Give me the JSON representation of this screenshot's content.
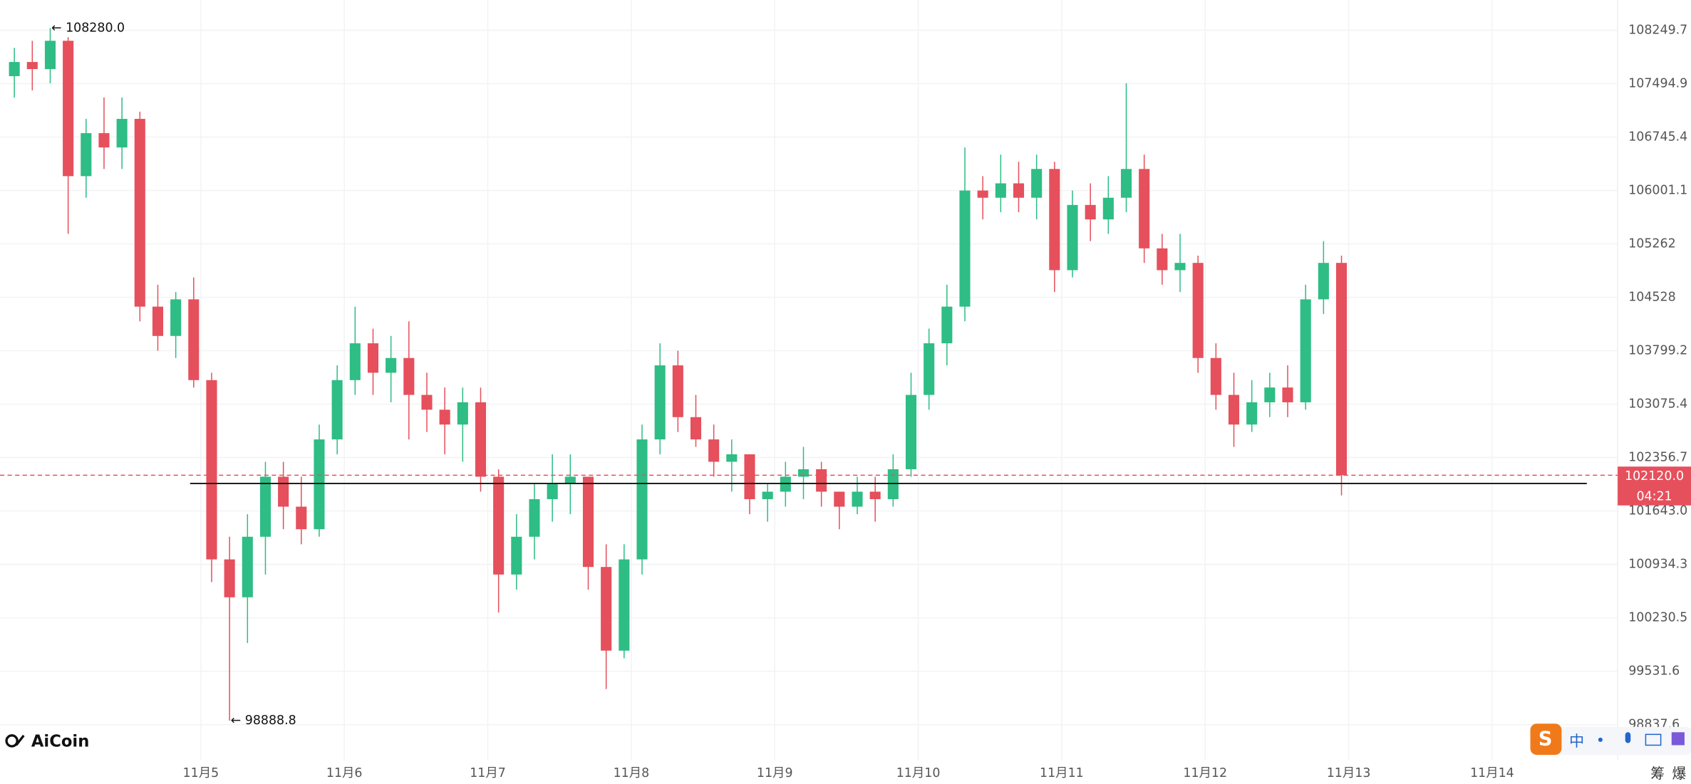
{
  "chart_data": {
    "type": "candlestick",
    "brand": "AiCoin",
    "log_scale": true,
    "grid": true,
    "up_color": "#2ebd85",
    "down_color": "#e5505c",
    "ylim": [
      98377,
      108679
    ],
    "yticks": [
      108249.7,
      107494.9,
      106745.4,
      106001.1,
      105262.0,
      104528.0,
      103799.2,
      103075.4,
      102356.7,
      {
        "value": 101643.0,
        "label": "101643.0"
      },
      100934.3,
      100230.5,
      99531.6,
      98837.6
    ],
    "xlim": [
      3.6,
      14.875
    ],
    "xticks": [
      {
        "value": 5,
        "label": "11月5"
      },
      {
        "value": 6,
        "label": "11月6"
      },
      {
        "value": 7,
        "label": "11月7"
      },
      {
        "value": 8,
        "label": "11月8"
      },
      {
        "value": 9,
        "label": "11月9"
      },
      {
        "value": 10,
        "label": "11月10"
      },
      {
        "value": 11,
        "label": "11月11"
      },
      {
        "value": 12,
        "label": "11月12"
      },
      {
        "value": 13,
        "label": "11月13"
      },
      {
        "value": 14,
        "label": "11月14"
      }
    ],
    "x": [
      3.7,
      3.825,
      3.95,
      4.075,
      4.2,
      4.325,
      4.45,
      4.575,
      4.7,
      4.825,
      4.95,
      5.075,
      5.2,
      5.325,
      5.45,
      5.575,
      5.7,
      5.825,
      5.95,
      6.075,
      6.2,
      6.325,
      6.45,
      6.575,
      6.7,
      6.825,
      6.95,
      7.075,
      7.2,
      7.325,
      7.45,
      7.575,
      7.7,
      7.825,
      7.95,
      8.075,
      8.2,
      8.325,
      8.45,
      8.575,
      8.7,
      8.825,
      8.95,
      9.075,
      9.2,
      9.325,
      9.45,
      9.575,
      9.7,
      9.825,
      9.95,
      10.075,
      10.2,
      10.325,
      10.45,
      10.575,
      10.7,
      10.825,
      10.95,
      11.075,
      11.2,
      11.325,
      11.45,
      11.575,
      11.7,
      11.825,
      11.95,
      12.075,
      12.2,
      12.325,
      12.45,
      12.575,
      12.7,
      12.825,
      12.95
    ],
    "open": [
      107600,
      107800,
      107700,
      108100,
      106200,
      106800,
      106600,
      107000,
      104400,
      104000,
      104500,
      103400,
      101000,
      100500,
      101300,
      102100,
      101700,
      101400,
      102600,
      103400,
      103900,
      103500,
      103700,
      103200,
      103000,
      102800,
      103100,
      102100,
      100800,
      101300,
      101800,
      102000,
      102100,
      100900,
      99800,
      101000,
      102600,
      103600,
      102900,
      102600,
      102300,
      102400,
      101800,
      101900,
      102100,
      102200,
      101900,
      101700,
      101900,
      101800,
      102200,
      103200,
      103900,
      104400,
      106000,
      105900,
      106100,
      105900,
      106300,
      104900,
      105800,
      105600,
      105900,
      106300,
      105200,
      104900,
      105000,
      103700,
      103200,
      102800,
      103100,
      103300,
      103100,
      104500,
      105000
    ],
    "high": [
      108000,
      108100,
      108280,
      108150,
      107000,
      107300,
      107300,
      107100,
      104700,
      104600,
      104800,
      103500,
      101300,
      101600,
      102300,
      102300,
      102100,
      102800,
      103600,
      104400,
      104100,
      104000,
      104200,
      103500,
      103300,
      103300,
      103300,
      102200,
      101600,
      102000,
      102400,
      102400,
      102100,
      101200,
      101200,
      102800,
      103900,
      103800,
      103200,
      102800,
      102600,
      102400,
      102000,
      102300,
      102500,
      102300,
      101900,
      102100,
      102100,
      102400,
      103500,
      104100,
      104700,
      106600,
      106200,
      106500,
      106400,
      106500,
      106400,
      106000,
      106100,
      106200,
      107500,
      106500,
      105400,
      105400,
      105100,
      103900,
      103500,
      103400,
      103500,
      103600,
      104700,
      105300,
      105100
    ],
    "low": [
      107300,
      107400,
      107500,
      105400,
      105900,
      106300,
      106300,
      104200,
      103800,
      103700,
      103300,
      100700,
      98888.8,
      99900,
      100800,
      101400,
      101200,
      101300,
      102400,
      103200,
      103200,
      103100,
      102600,
      102700,
      102400,
      102300,
      101900,
      100300,
      100600,
      101000,
      101500,
      101600,
      100600,
      99300,
      99700,
      100800,
      102400,
      102700,
      102500,
      102100,
      101900,
      101600,
      101500,
      101700,
      101800,
      101700,
      101400,
      101600,
      101500,
      101700,
      102100,
      103000,
      103600,
      104200,
      105600,
      105700,
      105700,
      105600,
      104600,
      104800,
      105300,
      105400,
      105700,
      105000,
      104700,
      104600,
      103500,
      103000,
      102500,
      102700,
      102900,
      102900,
      103000,
      104300,
      101850
    ],
    "close": [
      107800,
      107700,
      108100,
      106200,
      106800,
      106600,
      107000,
      104400,
      104000,
      104500,
      103400,
      101000,
      100500,
      101300,
      102100,
      101700,
      101400,
      102600,
      103400,
      103900,
      103500,
      103700,
      103200,
      103000,
      102800,
      103100,
      102100,
      100800,
      101300,
      101800,
      102000,
      102100,
      100900,
      99800,
      101000,
      102600,
      103600,
      102900,
      102600,
      102300,
      102400,
      101800,
      101900,
      102100,
      102200,
      101900,
      101700,
      101900,
      101800,
      102200,
      103200,
      103900,
      104400,
      106000,
      105900,
      106100,
      105900,
      106300,
      104900,
      105800,
      105600,
      105900,
      106300,
      105200,
      104900,
      105000,
      103700,
      103200,
      102800,
      103100,
      103300,
      103100,
      104500,
      105000,
      102120
    ],
    "annotations": [
      {
        "x": 3.95,
        "value": 108280.0,
        "label": "← 108280.0"
      },
      {
        "x": 5.2,
        "value": 98888.8,
        "label": "← 98888.8"
      }
    ],
    "drawn_line": {
      "value": 102010,
      "x": [
        4.925,
        14.66
      ]
    },
    "last_price": {
      "value": 102120.0,
      "label": "102120.0"
    },
    "countdown": "04:21",
    "side_labels": [
      "筹",
      "爆"
    ],
    "ime_label": "中"
  }
}
